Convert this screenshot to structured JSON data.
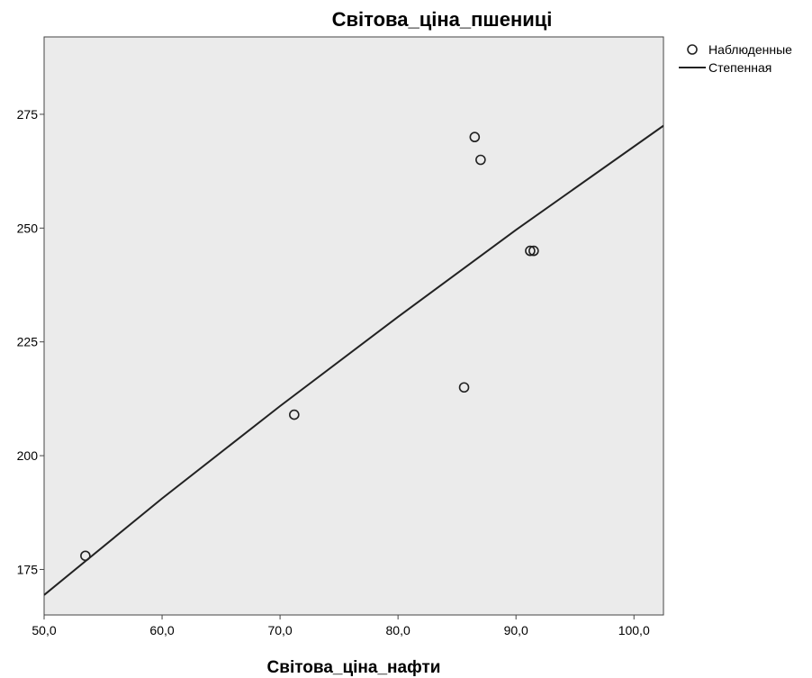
{
  "chart_data": {
    "type": "scatter",
    "title": "Світова_ціна_пшениці",
    "xlabel": "Світова_ціна_нафти",
    "ylabel": "",
    "xlim": [
      50,
      102.5
    ],
    "ylim": [
      165,
      292
    ],
    "x_ticks": [
      "50,0",
      "60,0",
      "70,0",
      "80,0",
      "90,0",
      "100,0"
    ],
    "y_ticks": [
      "175",
      "200",
      "225",
      "250",
      "275"
    ],
    "grid": false,
    "legend_position": "top-right",
    "colors": {
      "plot_background": "#ebebeb",
      "marks": "#333333"
    },
    "series": [
      {
        "name": "Наблюденные",
        "type": "scatter",
        "marker": "open-circle",
        "x": [
          53.5,
          71.2,
          85.6,
          86.5,
          87.0,
          91.2,
          91.5
        ],
        "y": [
          178,
          209,
          215,
          270,
          265,
          245,
          245
        ]
      },
      {
        "name": "Степенная",
        "type": "line",
        "model": "power",
        "x": [
          50,
          60,
          70,
          80,
          90,
          102.5
        ],
        "y": [
          169.4,
          190.6,
          210.9,
          230.5,
          249.6,
          272.5
        ]
      }
    ]
  }
}
